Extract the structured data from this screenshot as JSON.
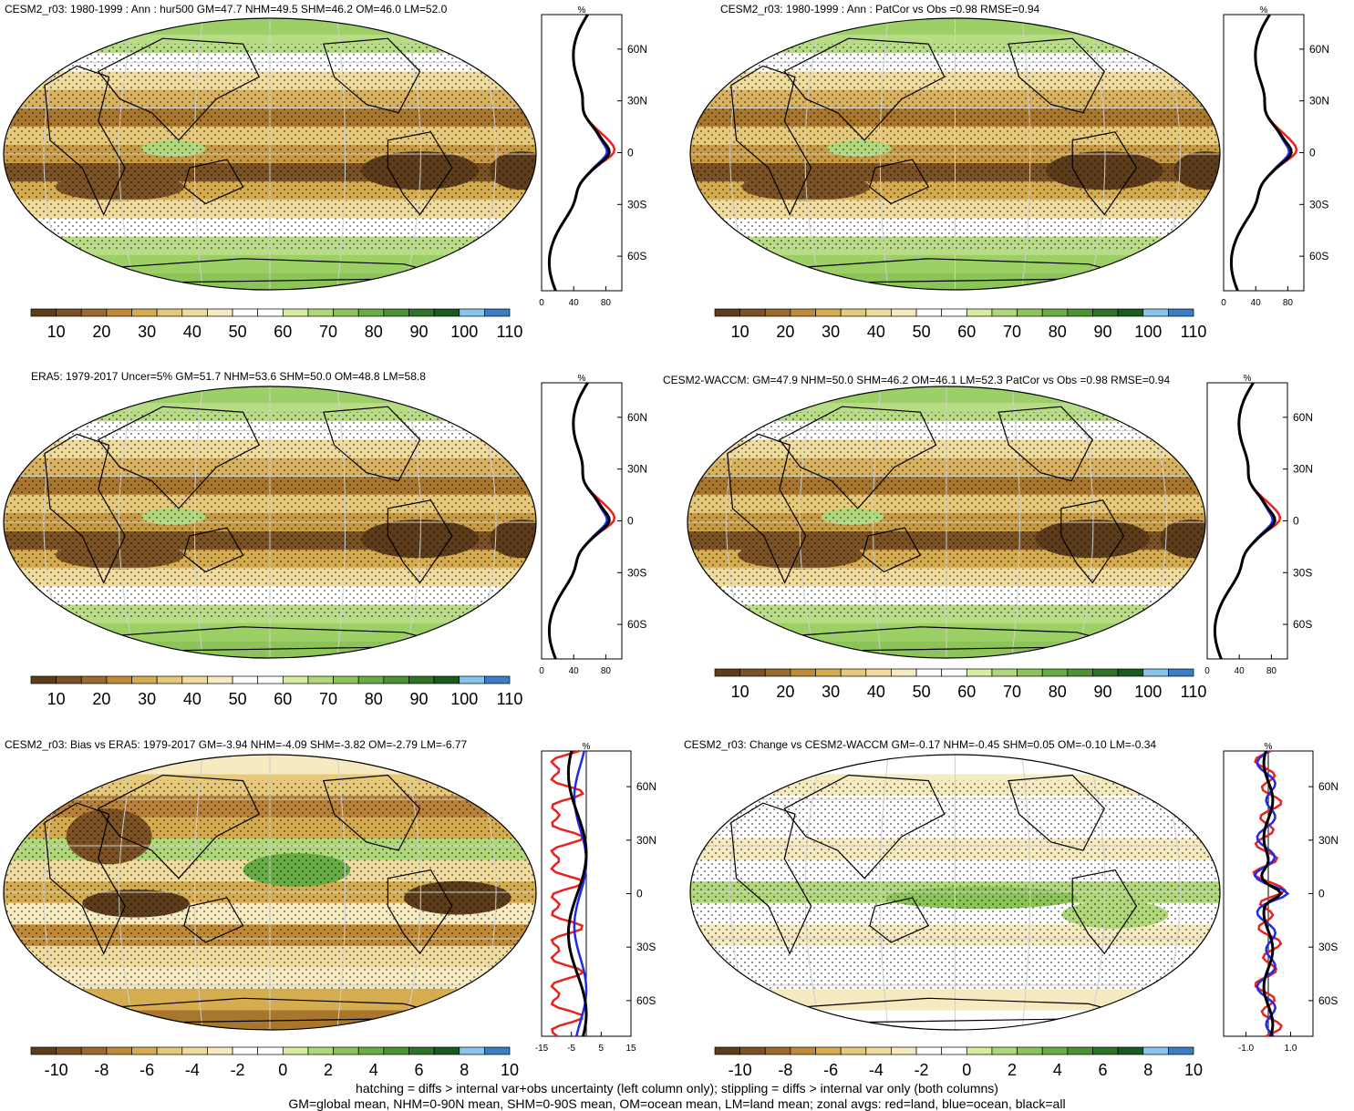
{
  "panels": [
    {
      "id": "p1",
      "title": "CESM2_r03: 1980-1999 : Ann : hur500 GM=47.7 NHM=49.5 SHM=46.2 OM=46.0 LM=52.0",
      "type": "abs"
    },
    {
      "id": "p2",
      "title": "CESM2_r03: 1980-1999 : Ann : PatCor vs Obs =0.98 RMSE=0.94",
      "type": "abs"
    },
    {
      "id": "p3",
      "title": "ERA5: 1979-2017 Uncer=5% GM=51.7 NHM=53.6 SHM=50.0 OM=48.8 LM=58.8",
      "type": "abs"
    },
    {
      "id": "p4",
      "title": "CESM2-WACCM: GM=47.9 NHM=50.0 SHM=46.2 OM=46.1 LM=52.3 PatCor vs Obs =0.98 RMSE=0.94",
      "type": "abs"
    },
    {
      "id": "p5",
      "title": "CESM2_r03: Bias vs ERA5: 1979-2017 GM=-3.94 NHM=-4.09 SHM=-3.82 OM=-2.79 LM=-6.77",
      "type": "diff"
    },
    {
      "id": "p6",
      "title": "CESM2_r03: Change vs CESM2-WACCM GM=-0.17 NHM=-0.45 SHM=0.05 OM=-0.10 LM=-0.34",
      "type": "diff2"
    }
  ],
  "colorbars": {
    "abs": {
      "labels": [
        "10",
        "20",
        "30",
        "40",
        "50",
        "60",
        "70",
        "80",
        "90",
        "100",
        "110"
      ]
    },
    "diff": {
      "labels": [
        "-10",
        "-8",
        "-6",
        "-4",
        "-2",
        "0",
        "2",
        "4",
        "6",
        "8",
        "10"
      ]
    },
    "colors": [
      "#5c3c1a",
      "#7a5225",
      "#9a6a2e",
      "#c08a36",
      "#d6ac50",
      "#e6c97a",
      "#f0dc9e",
      "#f6eac0",
      "#ffffff",
      "#ffffff",
      "#d6ec9e",
      "#b0d87a",
      "#8cc45a",
      "#68ac44",
      "#4a9232",
      "#2e7428",
      "#1a5a1e",
      "#88c4ec",
      "#3a7ec8"
    ]
  },
  "zonal": {
    "unit": "%",
    "lat_labels": [
      "60N",
      "30N",
      "0",
      "30S",
      "60S"
    ],
    "abs_ticks": [
      "0",
      "40",
      "80"
    ],
    "bias_ticks": [
      "-15",
      "-5",
      "5",
      "15"
    ],
    "change_ticks": [
      "-1.0",
      "1.0"
    ],
    "legend": {
      "land": "#e8231e",
      "ocean": "#1e2be8",
      "all": "#000000"
    }
  },
  "footnote": {
    "line1": "hatching = diffs > internal var+obs uncertainty (left column only); stippling = diffs > internal var only (both columns)",
    "line2": "GM=global mean, NHM=0-90N mean, SHM=0-90S mean, OM=ocean mean, LM=land mean; zonal avgs: red=land, blue=ocean, black=all"
  }
}
